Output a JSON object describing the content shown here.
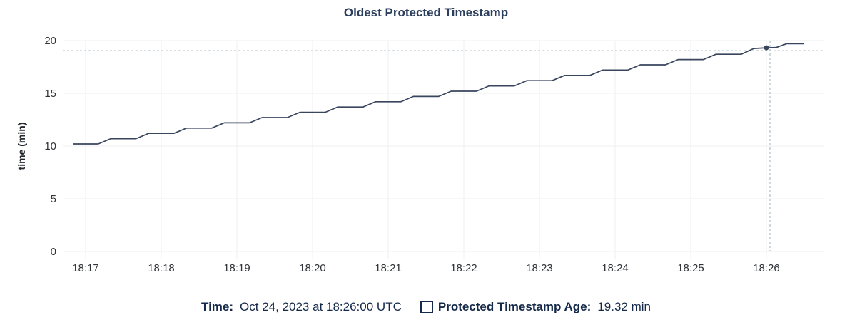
{
  "title": "Oldest Protected Timestamp",
  "legend": {
    "time_label": "Time:",
    "time_value": "Oct 24, 2023 at 18:26:00 UTC",
    "series_label": "Protected Timestamp Age:",
    "series_value": "19.32 min"
  },
  "colors": {
    "line": "#39465e",
    "hover_dot": "#39465e",
    "crosshair": "#9db0bf",
    "grid": "#efefef",
    "tick_text": "#303338",
    "title_text": "#2c3e5d",
    "legend_text": "#15294a"
  },
  "chart_data": {
    "type": "line",
    "title": "Oldest Protected Timestamp",
    "xlabel": "",
    "ylabel": "time (min)",
    "ylim": [
      0,
      20
    ],
    "y_ticks": [
      0,
      5,
      10,
      15,
      20
    ],
    "x_ticks": [
      "18:17",
      "18:18",
      "18:19",
      "18:20",
      "18:21",
      "18:22",
      "18:23",
      "18:24",
      "18:25",
      "18:26"
    ],
    "x_domain": [
      "18:16:42",
      "18:26:51"
    ],
    "grid": true,
    "legend_position": "bottom",
    "series": [
      {
        "name": "Protected Timestamp Age",
        "unit": "min",
        "points": [
          [
            "18:16:50",
            10.2
          ],
          [
            "18:17:00",
            10.2
          ],
          [
            "18:17:10",
            10.2
          ],
          [
            "18:17:20",
            10.7
          ],
          [
            "18:17:30",
            10.7
          ],
          [
            "18:17:40",
            10.7
          ],
          [
            "18:17:50",
            11.2
          ],
          [
            "18:18:00",
            11.2
          ],
          [
            "18:18:10",
            11.2
          ],
          [
            "18:18:20",
            11.7
          ],
          [
            "18:18:30",
            11.7
          ],
          [
            "18:18:40",
            11.7
          ],
          [
            "18:18:50",
            12.2
          ],
          [
            "18:19:00",
            12.2
          ],
          [
            "18:19:10",
            12.2
          ],
          [
            "18:19:20",
            12.7
          ],
          [
            "18:19:30",
            12.7
          ],
          [
            "18:19:40",
            12.7
          ],
          [
            "18:19:50",
            13.2
          ],
          [
            "18:20:00",
            13.2
          ],
          [
            "18:20:10",
            13.2
          ],
          [
            "18:20:20",
            13.7
          ],
          [
            "18:20:30",
            13.7
          ],
          [
            "18:20:40",
            13.7
          ],
          [
            "18:20:50",
            14.2
          ],
          [
            "18:21:00",
            14.2
          ],
          [
            "18:21:10",
            14.2
          ],
          [
            "18:21:20",
            14.7
          ],
          [
            "18:21:30",
            14.7
          ],
          [
            "18:21:40",
            14.7
          ],
          [
            "18:21:50",
            15.2
          ],
          [
            "18:22:00",
            15.2
          ],
          [
            "18:22:10",
            15.2
          ],
          [
            "18:22:20",
            15.7
          ],
          [
            "18:22:30",
            15.7
          ],
          [
            "18:22:40",
            15.7
          ],
          [
            "18:22:50",
            16.2
          ],
          [
            "18:23:00",
            16.2
          ],
          [
            "18:23:10",
            16.2
          ],
          [
            "18:23:20",
            16.7
          ],
          [
            "18:23:30",
            16.7
          ],
          [
            "18:23:40",
            16.7
          ],
          [
            "18:23:50",
            17.2
          ],
          [
            "18:24:00",
            17.2
          ],
          [
            "18:24:10",
            17.2
          ],
          [
            "18:24:20",
            17.7
          ],
          [
            "18:24:30",
            17.7
          ],
          [
            "18:24:40",
            17.7
          ],
          [
            "18:24:50",
            18.2
          ],
          [
            "18:25:00",
            18.2
          ],
          [
            "18:25:10",
            18.2
          ],
          [
            "18:25:20",
            18.7
          ],
          [
            "18:25:30",
            18.7
          ],
          [
            "18:25:40",
            18.7
          ],
          [
            "18:25:50",
            19.25
          ],
          [
            "18:26:00",
            19.32
          ],
          [
            "18:26:08",
            19.35
          ],
          [
            "18:26:16",
            19.7
          ],
          [
            "18:26:30",
            19.7
          ]
        ]
      }
    ],
    "hover_point": {
      "time": "18:26:00",
      "value": 19.32,
      "time_label": "Oct 24, 2023 at 18:26:00 UTC",
      "value_label": "19.32 min"
    }
  }
}
